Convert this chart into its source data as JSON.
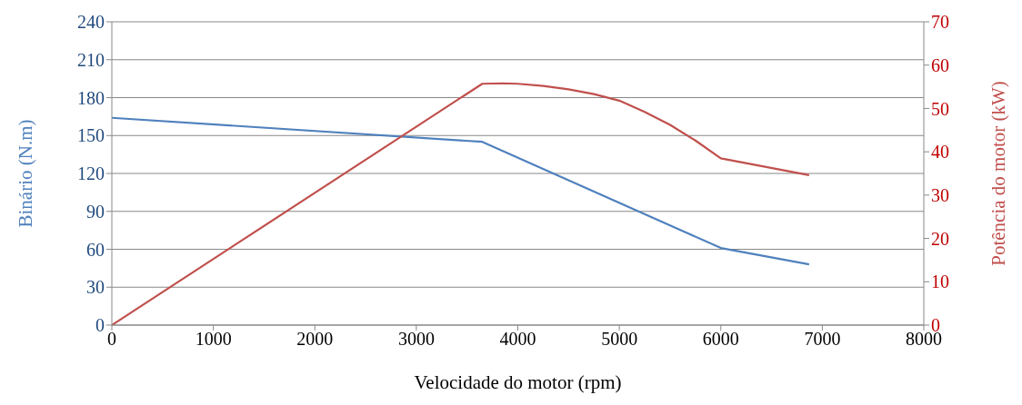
{
  "chart_data": {
    "type": "line",
    "xlabel": "Velocidade do motor (rpm)",
    "ylabel": "Binário (N.m)",
    "y2label": "Potência do motor  (kW)",
    "xlim": [
      0,
      8000
    ],
    "xticks": [
      0,
      1000,
      2000,
      3000,
      4000,
      5000,
      6000,
      7000,
      8000
    ],
    "ylim": [
      0,
      240
    ],
    "yticks": [
      0,
      30,
      60,
      90,
      120,
      150,
      180,
      210,
      240
    ],
    "y2lim": [
      0,
      70
    ],
    "y2ticks": [
      0,
      10,
      20,
      30,
      40,
      50,
      60,
      70
    ],
    "grid": "y",
    "marker": "none",
    "line_style": "solid",
    "series": [
      {
        "color": "#4f81bd",
        "x": [
          0,
          3650,
          6000,
          6870
        ],
        "values": [
          164,
          145,
          61,
          48
        ]
      },
      {
        "color": "#c0504d",
        "axis": "y2",
        "x": [
          0,
          3650,
          3850,
          4000,
          4250,
          4500,
          4750,
          5000,
          5250,
          5500,
          5750,
          6000,
          6870
        ],
        "values": [
          0,
          55.7,
          55.8,
          55.7,
          55.2,
          54.4,
          53.3,
          51.8,
          49.2,
          46.2,
          42.6,
          38.5,
          34.6
        ]
      }
    ]
  }
}
